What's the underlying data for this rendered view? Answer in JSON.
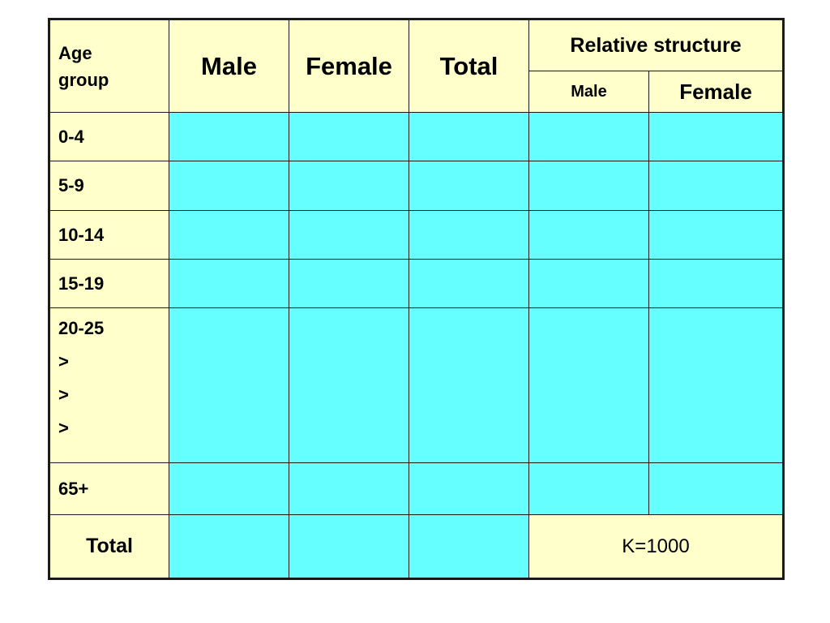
{
  "colors": {
    "header_bg": "#ffffcc",
    "data_cell_bg": "#66ffff",
    "border": "#1a1a1a"
  },
  "header": {
    "age_group_line1": "Age",
    "age_group_line2": "group",
    "male": "Male",
    "female": "Female",
    "total": "Total",
    "relative_structure": "Relative structure",
    "rel_male": "Male",
    "rel_female": "Female"
  },
  "rows": [
    {
      "label": "0-4"
    },
    {
      "label": "5-9"
    },
    {
      "label": "10-14"
    },
    {
      "label": "15-19"
    },
    {
      "lines": [
        "20-25",
        ">",
        ">",
        ">"
      ]
    },
    {
      "label": "65+"
    }
  ],
  "footer": {
    "total_label": "Total",
    "k_value": "K=1000"
  }
}
